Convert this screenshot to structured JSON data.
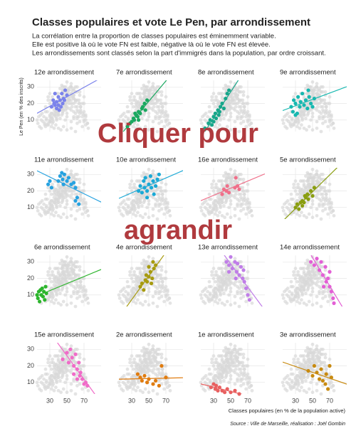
{
  "chart_data": {
    "type": "scatter",
    "title": "Classes populaires et vote Le Pen, par arrondissement",
    "subtitle": [
      "La corrélation entre la proportion de classes populaires est éminemment variable.",
      "Elle est positive là où le vote FN est faible, négative là où le vote FN est élevée.",
      "Les arrondissements sont classés selon la part d'immigrés dans la population, par ordre croissant."
    ],
    "xlabel": "Classes populaires (en % de la population active)",
    "ylabel": "Le Pen (en % des inscrits)",
    "source": "Source : Ville de Marseille, réalisation : Joël Gombin",
    "overlay": [
      "Cliquer pour",
      "agrandir"
    ],
    "xlim": [
      15,
      90
    ],
    "ylim": [
      3,
      34
    ],
    "xticks": [
      30,
      50,
      70
    ],
    "yticks": [
      10,
      20,
      30
    ],
    "grid": true,
    "panels": [
      {
        "name": "12e arrondissement",
        "color": "#7b83eb",
        "x": [
          32,
          34,
          35,
          36,
          38,
          38,
          40,
          40,
          42,
          43,
          44,
          45,
          46,
          48,
          50,
          36,
          41,
          47
        ],
        "y": [
          18,
          22,
          20,
          26,
          17,
          21,
          19,
          24,
          22,
          18,
          26,
          20,
          23,
          28,
          25,
          19,
          16,
          22
        ]
      },
      {
        "name": "7e arrondissement",
        "color": "#1aa860",
        "x": [
          25,
          28,
          30,
          32,
          33,
          35,
          37,
          38,
          40,
          42,
          43,
          45,
          46,
          48,
          38,
          34
        ],
        "y": [
          6,
          8,
          9,
          11,
          10,
          13,
          12,
          15,
          14,
          17,
          18,
          20,
          16,
          22,
          10,
          14
        ]
      },
      {
        "name": "8e arrondissement",
        "color": "#17a68a",
        "x": [
          20,
          24,
          26,
          28,
          30,
          32,
          33,
          35,
          36,
          38,
          40,
          42,
          44,
          46,
          48,
          30,
          37
        ],
        "y": [
          5,
          8,
          10,
          7,
          12,
          14,
          11,
          16,
          13,
          18,
          20,
          17,
          23,
          26,
          28,
          9,
          15
        ]
      },
      {
        "name": "9e arrondissement",
        "color": "#17b8b0",
        "x": [
          25,
          27,
          28,
          30,
          32,
          33,
          35,
          36,
          38,
          40,
          42,
          44,
          46,
          48,
          50,
          52,
          45,
          30
        ],
        "y": [
          18,
          15,
          22,
          20,
          14,
          24,
          18,
          21,
          26,
          19,
          22,
          17,
          24,
          20,
          18,
          23,
          28,
          13
        ]
      },
      {
        "name": "11e arrondissement",
        "color": "#27a2e0",
        "x": [
          28,
          30,
          32,
          40,
          42,
          44,
          45,
          46,
          47,
          50,
          52,
          55,
          58,
          60,
          62,
          64,
          60
        ],
        "y": [
          24,
          26,
          22,
          26,
          29,
          31,
          27,
          24,
          30,
          26,
          28,
          24,
          25,
          22,
          16,
          12,
          14
        ]
      },
      {
        "name": "10e arrondissement",
        "color": "#1aa9d6",
        "x": [
          38,
          40,
          42,
          44,
          45,
          46,
          48,
          50,
          52,
          53,
          55,
          58,
          60,
          62,
          56,
          48
        ],
        "y": [
          20,
          23,
          19,
          26,
          22,
          28,
          20,
          24,
          29,
          22,
          26,
          23,
          27,
          30,
          18,
          16
        ]
      },
      {
        "name": "16e arrondissement",
        "color": "#f0708a",
        "x": [
          40,
          42,
          45,
          48,
          55,
          58,
          56,
          60,
          46
        ],
        "y": [
          18,
          21,
          20,
          19,
          22,
          23,
          28,
          21,
          23
        ]
      },
      {
        "name": "5e arrondissement",
        "color": "#8a9e10",
        "x": [
          30,
          32,
          34,
          36,
          38,
          40,
          42,
          44,
          45,
          48,
          50,
          52,
          38,
          41
        ],
        "y": [
          10,
          12,
          9,
          13,
          14,
          13,
          16,
          18,
          15,
          20,
          17,
          22,
          11,
          17
        ]
      },
      {
        "name": "6e arrondissement",
        "color": "#2cb52c",
        "x": [
          15,
          16,
          17,
          18,
          20,
          21,
          22,
          23,
          24,
          25,
          26,
          19
        ],
        "y": [
          10,
          8,
          12,
          6,
          10,
          14,
          9,
          12,
          7,
          15,
          11,
          13
        ]
      },
      {
        "name": "4e arrondissement",
        "color": "#a79b10",
        "x": [
          40,
          42,
          44,
          46,
          48,
          50,
          52,
          54,
          56,
          58,
          55,
          50,
          47,
          53
        ],
        "y": [
          15,
          17,
          13,
          19,
          18,
          21,
          24,
          20,
          26,
          28,
          30,
          27,
          22,
          17
        ]
      },
      {
        "name": "13e arrondissement",
        "color": "#c07de8",
        "x": [
          45,
          48,
          50,
          52,
          55,
          57,
          58,
          60,
          62,
          64,
          66,
          68,
          70,
          72,
          56,
          65,
          48
        ],
        "y": [
          30,
          28,
          33,
          26,
          30,
          24,
          29,
          22,
          27,
          20,
          18,
          14,
          10,
          7,
          20,
          25,
          24
        ]
      },
      {
        "name": "14e arrondissement",
        "color": "#e35fd5",
        "x": [
          48,
          52,
          55,
          58,
          60,
          62,
          65,
          66,
          68,
          70,
          72,
          74,
          75,
          70,
          63
        ],
        "y": [
          30,
          28,
          32,
          25,
          30,
          22,
          27,
          18,
          20,
          15,
          12,
          8,
          5,
          24,
          15
        ]
      },
      {
        "name": "15e arrondissement",
        "color": "#f06cc8",
        "x": [
          45,
          50,
          52,
          54,
          56,
          58,
          60,
          62,
          64,
          65,
          66,
          68,
          70,
          72,
          74,
          58,
          62
        ],
        "y": [
          24,
          28,
          22,
          30,
          25,
          20,
          27,
          18,
          22,
          14,
          16,
          12,
          9,
          10,
          8,
          15,
          12
        ]
      },
      {
        "name": "2e arrondissement",
        "color": "#e07c10",
        "x": [
          37,
          40,
          42,
          45,
          48,
          50,
          55,
          58,
          62,
          65,
          70
        ],
        "y": [
          15,
          13,
          11,
          14,
          10,
          12,
          9,
          11,
          8,
          20,
          13
        ]
      },
      {
        "name": "1e arrondissement",
        "color": "#e86060",
        "x": [
          27,
          30,
          32,
          33,
          35,
          37,
          40,
          43,
          46,
          50,
          55,
          60
        ],
        "y": [
          7,
          9,
          6,
          8,
          5,
          7,
          5,
          4,
          6,
          4,
          5,
          3
        ]
      },
      {
        "name": "3e arrondissement",
        "color": "#c88a10",
        "x": [
          45,
          50,
          52,
          55,
          58,
          60,
          62,
          65,
          68,
          70,
          72,
          66
        ],
        "y": [
          17,
          14,
          20,
          16,
          12,
          18,
          11,
          9,
          6,
          20,
          13,
          15
        ]
      }
    ]
  }
}
